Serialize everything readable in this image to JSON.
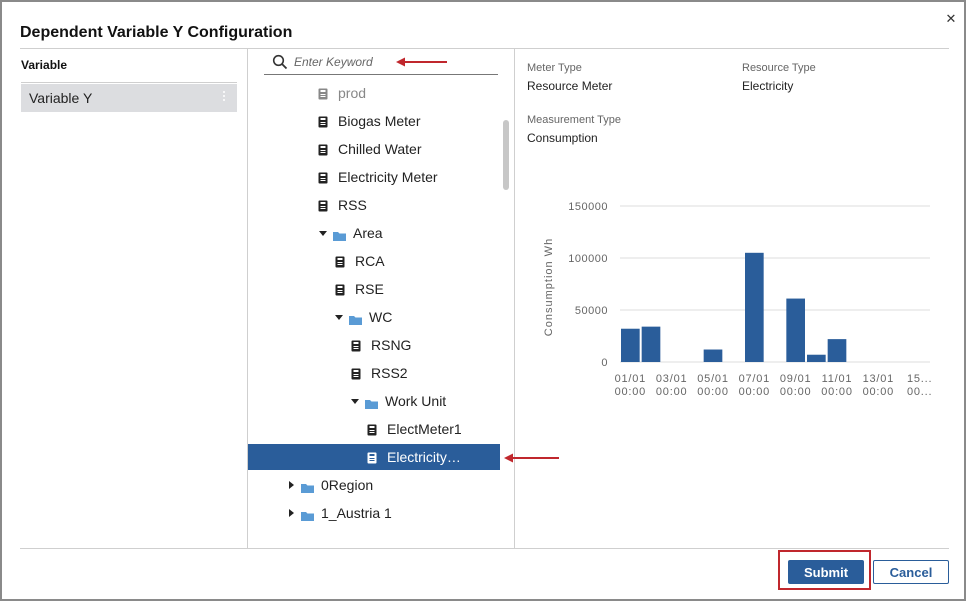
{
  "dialog": {
    "title": "Dependent Variable Y Configuration",
    "close_glyph": "✕"
  },
  "variables": {
    "header": "Variable",
    "items": [
      {
        "label": "Variable Y"
      }
    ]
  },
  "search": {
    "placeholder": "Enter Keyword",
    "value": ""
  },
  "tree": {
    "rows": [
      {
        "label": "prod",
        "kind": "meter"
      },
      {
        "label": "Biogas Meter",
        "kind": "meter"
      },
      {
        "label": "Chilled Water",
        "kind": "meter"
      },
      {
        "label": "Electricity Meter",
        "kind": "meter"
      },
      {
        "label": "RSS",
        "kind": "meter"
      },
      {
        "label": "Area",
        "kind": "folder",
        "expanded": true
      },
      {
        "label": "RCA",
        "kind": "meter"
      },
      {
        "label": "RSE",
        "kind": "meter"
      },
      {
        "label": "WC",
        "kind": "folder",
        "expanded": true
      },
      {
        "label": "RSNG",
        "kind": "meter"
      },
      {
        "label": "RSS2",
        "kind": "meter"
      },
      {
        "label": "Work Unit",
        "kind": "folder",
        "expanded": true
      },
      {
        "label": "ElectMeter1",
        "kind": "meter"
      },
      {
        "label": "Electricity…",
        "kind": "meter",
        "selected": true
      },
      {
        "label": "0Region",
        "kind": "folder",
        "expanded": false
      },
      {
        "label": "1_Austria 1",
        "kind": "folder",
        "expanded": false
      }
    ]
  },
  "details": {
    "meter_type_label": "Meter Type",
    "meter_type_value": "Resource Meter",
    "resource_type_label": "Resource Type",
    "resource_type_value": "Electricity",
    "measurement_type_label": "Measurement Type",
    "measurement_type_value": "Consumption"
  },
  "chart_data": {
    "type": "bar",
    "ylabel": "Consumption Wh",
    "ylim": [
      0,
      150000
    ],
    "yticks": [
      0,
      50000,
      100000,
      150000
    ],
    "ytick_labels": [
      "0",
      "50000",
      "100000",
      "150000"
    ],
    "xtick_labels": [
      [
        "01/01",
        "00:00"
      ],
      [
        "03/01",
        "00:00"
      ],
      [
        "05/01",
        "00:00"
      ],
      [
        "07/01",
        "00:00"
      ],
      [
        "09/01",
        "00:00"
      ],
      [
        "11/01",
        "00:00"
      ],
      [
        "13/01",
        "00:00"
      ],
      [
        "15...",
        "00..."
      ]
    ],
    "bar_days": [
      1,
      2,
      3,
      4,
      5,
      6,
      7,
      8,
      9,
      10,
      11,
      12,
      13,
      14,
      15
    ],
    "values": [
      32000,
      34000,
      0,
      0,
      12000,
      0,
      105000,
      0,
      61000,
      7000,
      22000,
      0,
      0,
      0,
      0
    ],
    "grid": true,
    "bar_color": "#2a5d9a"
  },
  "footer": {
    "submit_label": "Submit",
    "cancel_label": "Cancel"
  },
  "colors": {
    "accent": "#2a5d9a",
    "annotation": "#c0272d",
    "folder": "#5a9bd5"
  }
}
